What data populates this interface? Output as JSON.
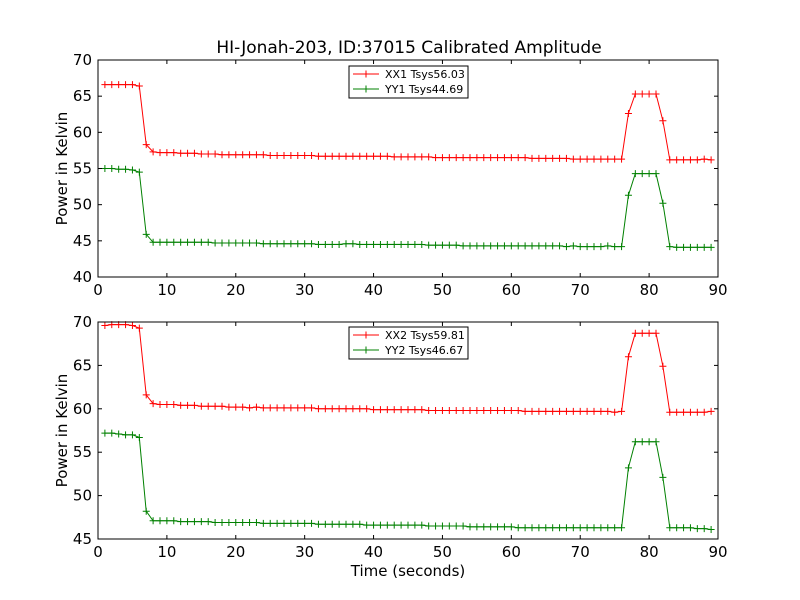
{
  "title": "HI-Jonah-203, ID:37015 Calibrated Amplitude",
  "chart_data": [
    {
      "type": "line",
      "title": "HI-Jonah-203, ID:37015 Calibrated Amplitude",
      "xlabel": "",
      "ylabel": "Power in Kelvin",
      "xlim": [
        0,
        90
      ],
      "ylim": [
        40,
        70
      ],
      "xticks": [
        0,
        10,
        20,
        30,
        40,
        50,
        60,
        70,
        80,
        90
      ],
      "yticks": [
        40,
        45,
        50,
        55,
        60,
        65,
        70
      ],
      "grid": false,
      "legend_position": "top-center",
      "x": [
        1,
        2,
        3,
        4,
        5,
        6,
        7,
        8,
        9,
        10,
        11,
        12,
        13,
        14,
        15,
        16,
        17,
        18,
        19,
        20,
        21,
        22,
        23,
        24,
        25,
        26,
        27,
        28,
        29,
        30,
        31,
        32,
        33,
        34,
        35,
        36,
        37,
        38,
        39,
        40,
        41,
        42,
        43,
        44,
        45,
        46,
        47,
        48,
        49,
        50,
        51,
        52,
        53,
        54,
        55,
        56,
        57,
        58,
        59,
        60,
        61,
        62,
        63,
        64,
        65,
        66,
        67,
        68,
        69,
        70,
        71,
        72,
        73,
        74,
        75,
        76,
        77,
        78,
        79,
        80,
        81,
        82,
        83,
        84,
        85,
        86,
        87,
        88,
        89
      ],
      "series": [
        {
          "name": "XX1 Tsys56.03",
          "color": "#ff0000",
          "values": [
            66.6,
            66.6,
            66.6,
            66.6,
            66.6,
            66.4,
            58.3,
            57.3,
            57.2,
            57.2,
            57.2,
            57.1,
            57.1,
            57.1,
            57.0,
            57.0,
            57.0,
            56.9,
            56.9,
            56.9,
            56.9,
            56.9,
            56.9,
            56.9,
            56.8,
            56.8,
            56.8,
            56.8,
            56.8,
            56.8,
            56.8,
            56.7,
            56.7,
            56.7,
            56.7,
            56.7,
            56.7,
            56.7,
            56.7,
            56.7,
            56.7,
            56.7,
            56.6,
            56.6,
            56.6,
            56.6,
            56.6,
            56.6,
            56.5,
            56.5,
            56.5,
            56.5,
            56.5,
            56.5,
            56.5,
            56.5,
            56.5,
            56.5,
            56.5,
            56.5,
            56.5,
            56.5,
            56.4,
            56.4,
            56.4,
            56.4,
            56.4,
            56.4,
            56.3,
            56.3,
            56.3,
            56.3,
            56.3,
            56.3,
            56.3,
            56.3,
            62.6,
            65.3,
            65.3,
            65.3,
            65.3,
            61.6,
            56.2,
            56.2,
            56.2,
            56.2,
            56.2,
            56.3,
            56.2
          ]
        },
        {
          "name": "YY1 Tsys44.69",
          "color": "#008000",
          "values": [
            55.0,
            55.0,
            54.9,
            54.9,
            54.8,
            54.5,
            45.9,
            44.8,
            44.8,
            44.8,
            44.8,
            44.8,
            44.8,
            44.8,
            44.8,
            44.8,
            44.7,
            44.7,
            44.7,
            44.7,
            44.7,
            44.7,
            44.7,
            44.6,
            44.6,
            44.6,
            44.6,
            44.6,
            44.6,
            44.6,
            44.6,
            44.5,
            44.5,
            44.5,
            44.5,
            44.6,
            44.6,
            44.5,
            44.5,
            44.5,
            44.5,
            44.5,
            44.5,
            44.5,
            44.5,
            44.5,
            44.5,
            44.4,
            44.4,
            44.4,
            44.4,
            44.4,
            44.3,
            44.3,
            44.3,
            44.3,
            44.3,
            44.3,
            44.3,
            44.3,
            44.3,
            44.3,
            44.3,
            44.3,
            44.3,
            44.3,
            44.3,
            44.2,
            44.3,
            44.2,
            44.2,
            44.2,
            44.2,
            44.3,
            44.2,
            44.2,
            51.3,
            54.3,
            54.3,
            54.3,
            54.3,
            50.2,
            44.2,
            44.1,
            44.1,
            44.1,
            44.1,
            44.1,
            44.1
          ]
        }
      ]
    },
    {
      "type": "line",
      "title": "",
      "xlabel": "Time (seconds)",
      "ylabel": "Power in Kelvin",
      "xlim": [
        0,
        90
      ],
      "ylim": [
        45,
        70
      ],
      "xticks": [
        0,
        10,
        20,
        30,
        40,
        50,
        60,
        70,
        80,
        90
      ],
      "yticks": [
        45,
        50,
        55,
        60,
        65,
        70
      ],
      "grid": false,
      "legend_position": "top-center",
      "x": [
        1,
        2,
        3,
        4,
        5,
        6,
        7,
        8,
        9,
        10,
        11,
        12,
        13,
        14,
        15,
        16,
        17,
        18,
        19,
        20,
        21,
        22,
        23,
        24,
        25,
        26,
        27,
        28,
        29,
        30,
        31,
        32,
        33,
        34,
        35,
        36,
        37,
        38,
        39,
        40,
        41,
        42,
        43,
        44,
        45,
        46,
        47,
        48,
        49,
        50,
        51,
        52,
        53,
        54,
        55,
        56,
        57,
        58,
        59,
        60,
        61,
        62,
        63,
        64,
        65,
        66,
        67,
        68,
        69,
        70,
        71,
        72,
        73,
        74,
        75,
        76,
        77,
        78,
        79,
        80,
        81,
        82,
        83,
        84,
        85,
        86,
        87,
        88,
        89
      ],
      "series": [
        {
          "name": "XX2 Tsys59.81",
          "color": "#ff0000",
          "values": [
            69.6,
            69.7,
            69.7,
            69.7,
            69.6,
            69.3,
            61.6,
            60.6,
            60.5,
            60.5,
            60.5,
            60.4,
            60.4,
            60.4,
            60.3,
            60.3,
            60.3,
            60.3,
            60.2,
            60.2,
            60.2,
            60.1,
            60.2,
            60.1,
            60.1,
            60.1,
            60.1,
            60.1,
            60.1,
            60.1,
            60.1,
            60.0,
            60.0,
            60.0,
            60.0,
            60.0,
            60.0,
            60.0,
            60.0,
            59.9,
            59.9,
            59.9,
            59.9,
            59.9,
            59.9,
            59.9,
            59.9,
            59.8,
            59.8,
            59.8,
            59.8,
            59.8,
            59.8,
            59.8,
            59.8,
            59.8,
            59.8,
            59.8,
            59.8,
            59.8,
            59.8,
            59.7,
            59.7,
            59.7,
            59.7,
            59.7,
            59.7,
            59.7,
            59.7,
            59.7,
            59.7,
            59.7,
            59.7,
            59.7,
            59.6,
            59.7,
            66.0,
            68.7,
            68.7,
            68.7,
            68.7,
            64.9,
            59.6,
            59.6,
            59.6,
            59.6,
            59.6,
            59.6,
            59.7
          ]
        },
        {
          "name": "YY2 Tsys46.67",
          "color": "#008000",
          "values": [
            57.2,
            57.2,
            57.1,
            57.0,
            57.0,
            56.7,
            48.2,
            47.1,
            47.1,
            47.1,
            47.1,
            47.0,
            47.0,
            47.0,
            47.0,
            47.0,
            46.9,
            46.9,
            46.9,
            46.9,
            46.9,
            46.9,
            46.9,
            46.8,
            46.8,
            46.8,
            46.8,
            46.8,
            46.8,
            46.8,
            46.8,
            46.7,
            46.7,
            46.7,
            46.7,
            46.7,
            46.7,
            46.7,
            46.6,
            46.6,
            46.6,
            46.6,
            46.6,
            46.6,
            46.6,
            46.6,
            46.6,
            46.5,
            46.5,
            46.5,
            46.5,
            46.5,
            46.5,
            46.4,
            46.4,
            46.4,
            46.4,
            46.4,
            46.4,
            46.4,
            46.3,
            46.3,
            46.3,
            46.3,
            46.3,
            46.3,
            46.3,
            46.3,
            46.3,
            46.3,
            46.3,
            46.3,
            46.3,
            46.3,
            46.3,
            46.3,
            53.2,
            56.2,
            56.2,
            56.2,
            56.2,
            52.1,
            46.3,
            46.3,
            46.3,
            46.3,
            46.2,
            46.2,
            46.1
          ]
        }
      ]
    }
  ]
}
